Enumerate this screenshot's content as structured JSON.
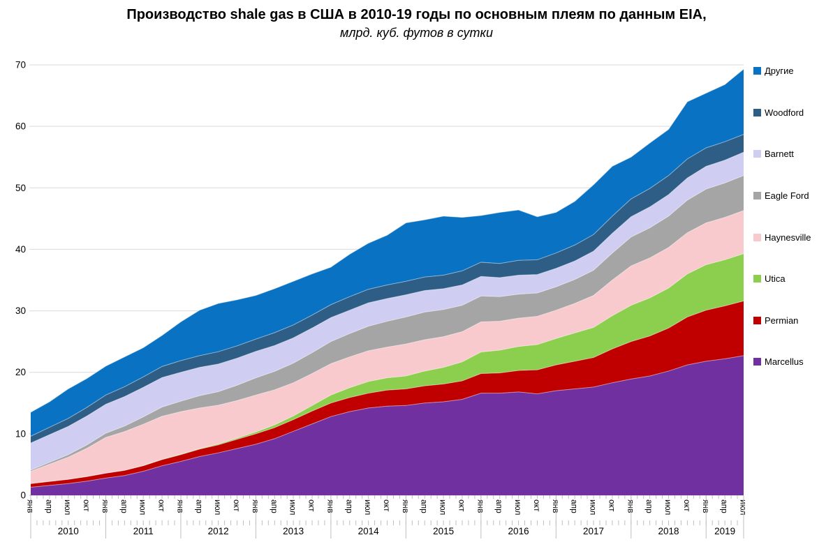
{
  "title_block": {
    "title": "Производство shale gas в США в 2010-19 годы по основным плеям по данным EIA,",
    "subtitle": "млрд. куб. футов в сутки"
  },
  "chart_data": {
    "type": "area",
    "stacked": true,
    "title": "Производство shale gas в США в 2010-19 годы по основным плеям по данным EIA,",
    "subtitle": "млрд. куб. футов в сутки",
    "ylabel": "млрд. куб. футов в сутки",
    "ylim": [
      0,
      70
    ],
    "yticks": [
      0,
      10,
      20,
      30,
      40,
      50,
      60,
      70
    ],
    "grid": "horizontal",
    "legend_position": "right",
    "axis_month_labels": [
      "янв",
      "апр",
      "июл",
      "окт"
    ],
    "years": [
      2010,
      2011,
      2012,
      2013,
      2014,
      2015,
      2016,
      2017,
      2018,
      2019
    ],
    "months_in_last_year": 7,
    "x": [
      "2010-янв",
      "2010-апр",
      "2010-июл",
      "2010-окт",
      "2011-янв",
      "2011-апр",
      "2011-июл",
      "2011-окт",
      "2012-янв",
      "2012-апр",
      "2012-июл",
      "2012-окт",
      "2013-янв",
      "2013-апр",
      "2013-июл",
      "2013-окт",
      "2014-янв",
      "2014-апр",
      "2014-июл",
      "2014-окт",
      "2015-янв",
      "2015-апр",
      "2015-июл",
      "2015-окт",
      "2016-янв",
      "2016-апр",
      "2016-июл",
      "2016-окт",
      "2017-янв",
      "2017-апр",
      "2017-июл",
      "2017-окт",
      "2018-янв",
      "2018-апр",
      "2018-июл",
      "2018-окт",
      "2019-янв",
      "2019-апр",
      "2019-июл"
    ],
    "series": [
      {
        "name": "Marcellus",
        "color": "#7030A0",
        "values": [
          1.3,
          1.6,
          1.9,
          2.3,
          2.8,
          3.2,
          3.9,
          4.8,
          5.5,
          6.3,
          6.9,
          7.6,
          8.3,
          9.2,
          10.4,
          11.6,
          12.8,
          13.6,
          14.2,
          14.5,
          14.6,
          15.0,
          15.2,
          15.6,
          16.6,
          16.6,
          16.8,
          16.5,
          17.0,
          17.3,
          17.6,
          18.3,
          18.9,
          19.4,
          20.2,
          21.2,
          21.8,
          22.2,
          22.7
        ]
      },
      {
        "name": "Permian",
        "color": "#C00000",
        "values": [
          0.6,
          0.65,
          0.7,
          0.75,
          0.8,
          0.85,
          0.9,
          1.0,
          1.1,
          1.2,
          1.3,
          1.5,
          1.7,
          1.8,
          1.9,
          2.1,
          2.2,
          2.3,
          2.4,
          2.6,
          2.7,
          2.8,
          2.9,
          3.0,
          3.2,
          3.3,
          3.5,
          3.9,
          4.2,
          4.5,
          4.8,
          5.5,
          6.1,
          6.5,
          7.0,
          7.8,
          8.3,
          8.6,
          8.9
        ]
      },
      {
        "name": "Utica",
        "color": "#8CCE4D",
        "values": [
          0,
          0,
          0,
          0,
          0,
          0,
          0.05,
          0.05,
          0.1,
          0.1,
          0.15,
          0.2,
          0.3,
          0.45,
          0.6,
          0.9,
          1.3,
          1.6,
          1.9,
          2.0,
          2.1,
          2.4,
          2.7,
          3.1,
          3.5,
          3.7,
          3.9,
          4.1,
          4.3,
          4.6,
          4.9,
          5.4,
          5.9,
          6.2,
          6.5,
          7.0,
          7.4,
          7.5,
          7.7
        ]
      },
      {
        "name": "Haynesville",
        "color": "#F8CACD",
        "values": [
          2.0,
          2.8,
          3.6,
          4.6,
          5.8,
          6.3,
          6.7,
          7.0,
          6.9,
          6.6,
          6.3,
          6.1,
          6.0,
          5.7,
          5.4,
          5.2,
          5.1,
          5.0,
          5.0,
          5.0,
          5.2,
          5.1,
          5.0,
          4.9,
          4.9,
          4.7,
          4.6,
          4.6,
          4.6,
          4.8,
          5.2,
          5.8,
          6.4,
          6.5,
          6.6,
          6.7,
          6.8,
          6.9,
          7.0
        ]
      },
      {
        "name": "Eagle Ford",
        "color": "#A5A5A5",
        "values": [
          0.2,
          0.3,
          0.4,
          0.55,
          0.7,
          0.9,
          1.2,
          1.5,
          1.7,
          2.0,
          2.2,
          2.5,
          2.8,
          3.0,
          3.2,
          3.4,
          3.6,
          3.8,
          4.0,
          4.2,
          4.4,
          4.5,
          4.4,
          4.3,
          4.2,
          4.0,
          3.9,
          3.8,
          3.8,
          3.9,
          4.1,
          4.4,
          4.7,
          4.9,
          5.1,
          5.3,
          5.5,
          5.6,
          5.7
        ]
      },
      {
        "name": "Barnett",
        "color": "#CFCEF2",
        "values": [
          4.4,
          4.5,
          4.6,
          4.7,
          4.7,
          4.8,
          4.8,
          4.8,
          4.7,
          4.6,
          4.5,
          4.4,
          4.3,
          4.2,
          4.1,
          4.0,
          3.9,
          3.8,
          3.8,
          3.7,
          3.6,
          3.5,
          3.4,
          3.3,
          3.2,
          3.1,
          3.1,
          3.0,
          3.0,
          3.0,
          3.1,
          3.2,
          3.3,
          3.4,
          3.5,
          3.6,
          3.7,
          3.7,
          3.8
        ]
      },
      {
        "name": "Woodford",
        "color": "#2E5E86",
        "values": [
          1.1,
          1.2,
          1.3,
          1.4,
          1.5,
          1.6,
          1.7,
          1.8,
          1.9,
          1.9,
          2.0,
          2.0,
          2.0,
          2.1,
          2.1,
          2.1,
          2.1,
          2.2,
          2.2,
          2.2,
          2.2,
          2.2,
          2.2,
          2.3,
          2.3,
          2.3,
          2.4,
          2.4,
          2.5,
          2.6,
          2.7,
          2.8,
          2.9,
          3.0,
          3.1,
          3.1,
          3.0,
          3.0,
          2.9
        ]
      },
      {
        "name": "Другие",
        "color": "#0A72C2",
        "values": [
          3.9,
          4.15,
          4.8,
          4.7,
          4.7,
          4.85,
          4.75,
          5.05,
          6.3,
          7.4,
          7.85,
          7.5,
          7.1,
          7.15,
          7.1,
          6.7,
          6.1,
          6.9,
          7.5,
          8.1,
          9.5,
          9.3,
          9.6,
          8.7,
          7.6,
          8.3,
          8.2,
          7.0,
          6.6,
          7.1,
          8.1,
          8.1,
          6.8,
          7.4,
          7.5,
          9.3,
          8.9,
          9.3,
          10.6
        ]
      }
    ],
    "legend_top_to_bottom": [
      "Другие",
      "Woodford",
      "Barnett",
      "Eagle Ford",
      "Haynesville",
      "Utica",
      "Permian",
      "Marcellus"
    ],
    "colors": {
      "gridline": "#D9D9D9",
      "axis": "#BFBFBF",
      "text": "#000000",
      "background": "#FFFFFF"
    }
  }
}
